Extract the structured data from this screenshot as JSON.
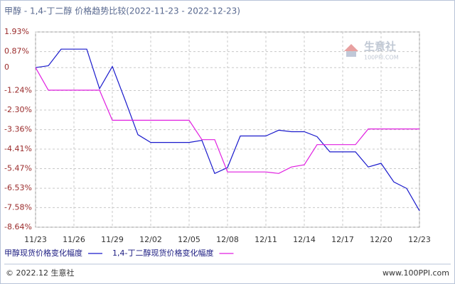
{
  "chart_data": {
    "type": "line",
    "title": "甲醇 - 1,4-丁二醇 价格趋势比较(2022-11-23 - 2022-12-23)",
    "categories": [
      "11/23",
      null,
      null,
      "11/26",
      null,
      null,
      "11/29",
      null,
      null,
      "12/02",
      null,
      null,
      "12/05",
      null,
      null,
      "12/08",
      null,
      null,
      "12/11",
      null,
      null,
      "12/14",
      null,
      null,
      "12/17",
      null,
      null,
      "12/20",
      null,
      null,
      "12/23"
    ],
    "series": [
      {
        "name": "甲醇现货价格变化幅度",
        "color": "#1a1acc",
        "values": [
          0,
          0.1,
          1.0,
          1.0,
          1.0,
          -1.14,
          0.06,
          -1.76,
          -3.63,
          -4.05,
          -4.05,
          -4.05,
          -4.05,
          -3.94,
          -5.73,
          -5.41,
          -3.7,
          -3.7,
          -3.7,
          -3.39,
          -3.47,
          -3.47,
          -3.74,
          -4.56,
          -4.56,
          -4.56,
          -5.38,
          -5.18,
          -6.19,
          -6.54,
          -7.75
        ]
      },
      {
        "name": "1,4-丁二醇现货价格变化幅度",
        "color": "#e01ee0",
        "values": [
          0,
          -1.22,
          -1.22,
          -1.22,
          -1.22,
          -1.22,
          -2.85,
          -2.85,
          -2.85,
          -2.85,
          -2.85,
          -2.85,
          -2.85,
          -3.9,
          -3.9,
          -5.65,
          -5.65,
          -5.65,
          -5.65,
          -5.73,
          -5.38,
          -5.26,
          -4.17,
          -4.17,
          -4.17,
          -4.17,
          -3.32,
          -3.32,
          -3.32,
          -3.32,
          -3.32
        ]
      }
    ],
    "ylim": [
      -8.64,
      1.93
    ],
    "yticks": [
      {
        "value": 1.93,
        "label": "1.93%"
      },
      {
        "value": 0.87,
        "label": "0.87%"
      },
      0,
      {
        "value": -1.24,
        "label": "-1.24%"
      },
      {
        "value": -2.3,
        "label": "-2.30%"
      },
      {
        "value": -3.36,
        "label": "-3.36%"
      },
      {
        "value": -4.41,
        "label": "-4.41%"
      },
      {
        "value": -5.47,
        "label": "-5.47%"
      },
      {
        "value": -6.53,
        "label": "-6.53%"
      },
      {
        "value": -7.58,
        "label": "-7.58%"
      },
      {
        "value": -8.64,
        "label": "-8.64%"
      }
    ],
    "grid": true,
    "legend": "bottom"
  },
  "watermark": {
    "name": "生意社",
    "url": "100PPI.COM"
  },
  "footer": {
    "copyright": "© 2022.12 生意社",
    "url": "www.100PPI.com"
  }
}
